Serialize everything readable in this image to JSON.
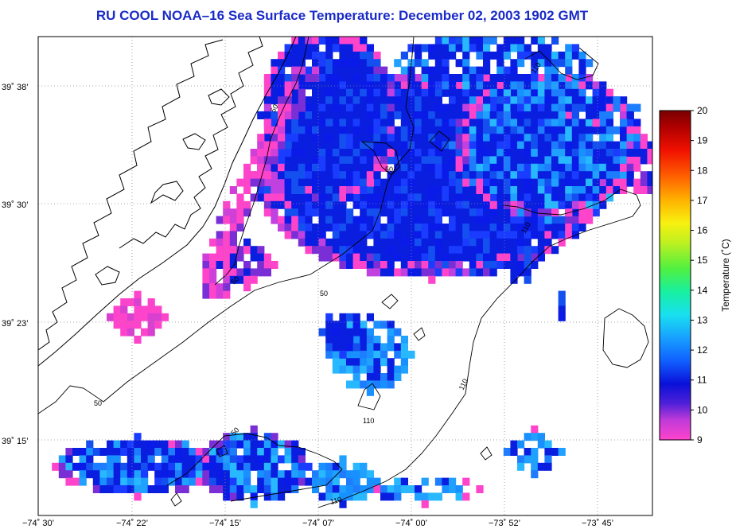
{
  "title": "RU COOL  NOAA–16  Sea Surface Temperature:  December 02, 2003 1902 GMT",
  "lat_labels": [
    "39˚ 38’",
    "39˚ 30’",
    "39˚ 23’",
    "39˚ 15’"
  ],
  "lon_labels": [
    "−74˚ 30’",
    "−74˚ 22’",
    "−74˚ 15’",
    "−74˚ 07’",
    "−74˚ 00’",
    "−73˚ 52’",
    "−73˚ 45’"
  ],
  "colorbar": {
    "label": "Temperature (˚C)",
    "ticks": [
      "9",
      "10",
      "11",
      "12",
      "13",
      "14",
      "15",
      "16",
      "17",
      "18",
      "19",
      "20"
    ],
    "colors": [
      "#ff44cc",
      "#7a2fd6",
      "#0a1ee0",
      "#1e7cff",
      "#1ed8ff",
      "#2ef0a0",
      "#8ef030",
      "#e8f020",
      "#ffc000",
      "#ff6000",
      "#e00000",
      "#800000"
    ]
  },
  "contour_labels": [
    "50",
    "50",
    "50",
    "50",
    "50",
    "50",
    "110",
    "110",
    "110",
    "110",
    "110"
  ]
}
